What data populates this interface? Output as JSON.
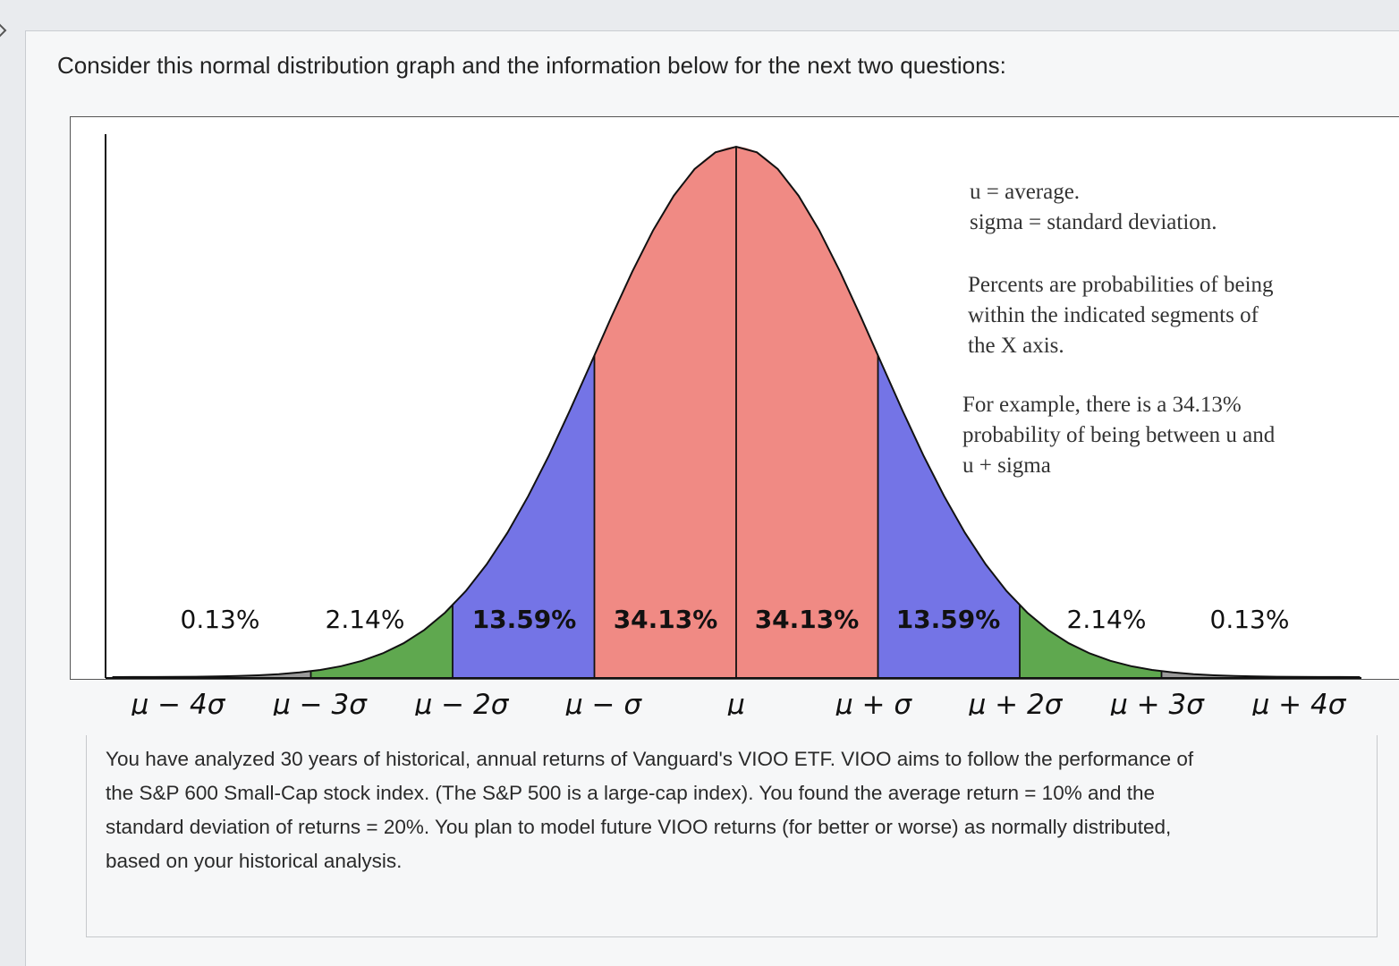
{
  "question": {
    "prompt": "Consider this normal distribution graph and the information below for the next two questions:"
  },
  "chart_data": {
    "type": "area",
    "title": "",
    "xlabel": "",
    "ylabel": "",
    "x_tick_labels": [
      "μ − 4σ",
      "μ − 3σ",
      "μ − 2σ",
      "μ − σ",
      "μ",
      "μ + σ",
      "μ + 2σ",
      "μ + 3σ",
      "μ + 4σ"
    ],
    "x_range_sigma": [
      -4,
      4
    ],
    "segments": [
      {
        "from": -4,
        "to": -3,
        "label": "0.13%",
        "value": 0.13,
        "color": "#9a9a9a"
      },
      {
        "from": -3,
        "to": -2,
        "label": "2.14%",
        "value": 2.14,
        "color": "#5fa84f"
      },
      {
        "from": -2,
        "to": -1,
        "label": "13.59%",
        "value": 13.59,
        "color": "#7474e6"
      },
      {
        "from": -1,
        "to": 0,
        "label": "34.13%",
        "value": 34.13,
        "color": "#f08a84"
      },
      {
        "from": 0,
        "to": 1,
        "label": "34.13%",
        "value": 34.13,
        "color": "#f08a84"
      },
      {
        "from": 1,
        "to": 2,
        "label": "13.59%",
        "value": 13.59,
        "color": "#7474e6"
      },
      {
        "from": 2,
        "to": 3,
        "label": "2.14%",
        "value": 2.14,
        "color": "#5fa84f"
      },
      {
        "from": 3,
        "to": 4,
        "label": "0.13%",
        "value": 0.13,
        "color": "#9a9a9a"
      }
    ],
    "legend": {
      "line1": "u = average.",
      "line2": "sigma = standard deviation.",
      "para2": [
        "Percents are probabilities of being",
        "within the indicated segments of",
        "the X axis."
      ],
      "para3": [
        "For example, there is a 34.13%",
        "probability of being between u and",
        "u + sigma"
      ]
    },
    "grid": false
  },
  "scenario": {
    "lines": [
      "You have analyzed 30 years of historical, annual returns of Vanguard's VIOO ETF.  VIOO aims to follow the performance of",
      "the S&P 600 Small-Cap stock index.  (The S&P 500 is a large-cap index).  You found the average return = 10% and the",
      "standard deviation of returns = 20%.  You plan to model future VIOO returns (for better or worse) as normally distributed,",
      "based on your historical analysis."
    ]
  }
}
